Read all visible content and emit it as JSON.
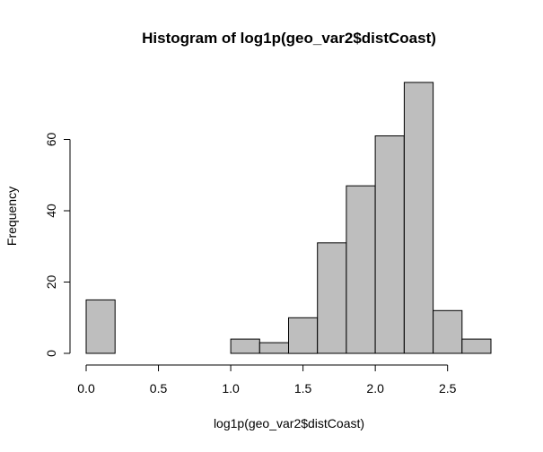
{
  "chart_data": {
    "type": "bar",
    "title": "Histogram of log1p(geo_var2$distCoast)",
    "xlabel": "log1p(geo_var2$distCoast)",
    "ylabel": "Frequency",
    "xlim": [
      0.0,
      2.8
    ],
    "ylim": [
      0,
      80
    ],
    "bins": [
      {
        "x0": 0.0,
        "x1": 0.2,
        "count": 15
      },
      {
        "x0": 0.2,
        "x1": 0.4,
        "count": 0
      },
      {
        "x0": 0.4,
        "x1": 0.6,
        "count": 0
      },
      {
        "x0": 0.6,
        "x1": 0.8,
        "count": 0
      },
      {
        "x0": 0.8,
        "x1": 1.0,
        "count": 0
      },
      {
        "x0": 1.0,
        "x1": 1.2,
        "count": 4
      },
      {
        "x0": 1.2,
        "x1": 1.4,
        "count": 3
      },
      {
        "x0": 1.4,
        "x1": 1.6,
        "count": 10
      },
      {
        "x0": 1.6,
        "x1": 1.8,
        "count": 31
      },
      {
        "x0": 1.8,
        "x1": 2.0,
        "count": 47
      },
      {
        "x0": 2.0,
        "x1": 2.2,
        "count": 61
      },
      {
        "x0": 2.2,
        "x1": 2.4,
        "count": 76
      },
      {
        "x0": 2.4,
        "x1": 2.6,
        "count": 12
      },
      {
        "x0": 2.6,
        "x1": 2.8,
        "count": 4
      }
    ],
    "x_ticks": [
      {
        "value": 0.0,
        "label": "0.0"
      },
      {
        "value": 0.5,
        "label": "0.5"
      },
      {
        "value": 1.0,
        "label": "1.0"
      },
      {
        "value": 1.5,
        "label": "1.5"
      },
      {
        "value": 2.0,
        "label": "2.0"
      },
      {
        "value": 2.5,
        "label": "2.5"
      }
    ],
    "y_ticks": [
      {
        "value": 0,
        "label": "0"
      },
      {
        "value": 20,
        "label": "20"
      },
      {
        "value": 40,
        "label": "40"
      },
      {
        "value": 60,
        "label": "60"
      }
    ],
    "grid": false,
    "legend": "none",
    "colors": {
      "bar_fill": "#bebebe",
      "bar_stroke": "#000000"
    }
  }
}
